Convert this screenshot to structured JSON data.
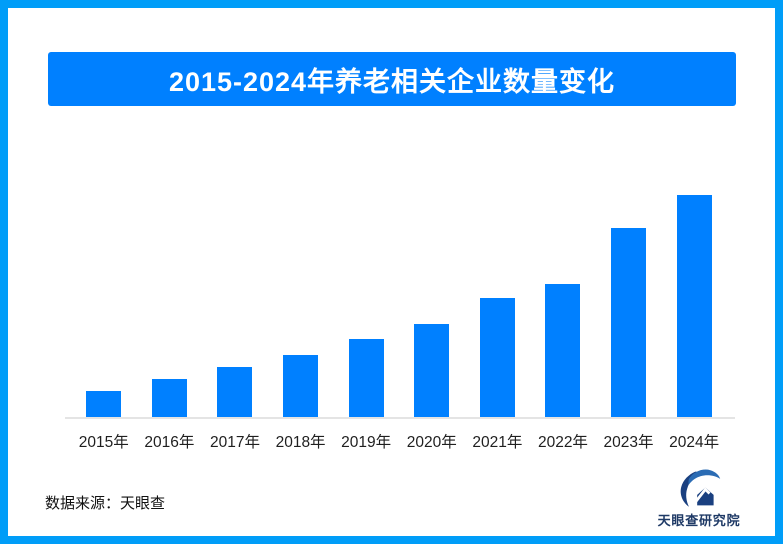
{
  "header": {
    "title": "2015-2024年养老相关企业数量变化"
  },
  "chart_data": {
    "type": "bar",
    "title": "2015-2024年养老相关企业数量变化",
    "categories": [
      "2015年",
      "2016年",
      "2017年",
      "2018年",
      "2019年",
      "2020年",
      "2021年",
      "2022年",
      "2023年",
      "2024年"
    ],
    "values": [
      26,
      38,
      50,
      62,
      78,
      93,
      119,
      133,
      189,
      222
    ],
    "xlabel": "",
    "ylabel": "",
    "ylim": [
      0,
      240
    ],
    "grid": false,
    "y_axis_visible": false,
    "value_labels_visible": false,
    "legend": "none",
    "note": "values are relative bar heights; no numeric scale shown in image"
  },
  "footer": {
    "source": "数据来源：天眼查",
    "brand": "天眼查研究院"
  },
  "icons": {
    "brand_logo": "tianyancha-eye-house-logo"
  },
  "colors": {
    "bar": "#0080FF",
    "banner_bg": "#0080FF",
    "banner_text": "#FFFFFF",
    "frame_border": "#009DF8",
    "axis_line": "#E4E4E4",
    "label_text": "#1F1F1F",
    "logo_dark": "#1A4080",
    "logo_light": "#2B6CB4",
    "brand_text": "#1F3A66"
  }
}
